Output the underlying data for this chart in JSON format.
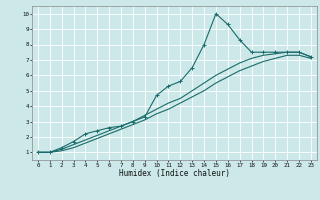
{
  "xlabel": "Humidex (Indice chaleur)",
  "bg_color": "#cce8e8",
  "grid_color": "#ffffff",
  "line_color": "#1a6b6b",
  "xlim": [
    -0.5,
    23.5
  ],
  "ylim": [
    0.5,
    10.5
  ],
  "xticks": [
    0,
    1,
    2,
    3,
    4,
    5,
    6,
    7,
    8,
    9,
    10,
    11,
    12,
    13,
    14,
    15,
    16,
    17,
    18,
    19,
    20,
    21,
    22,
    23
  ],
  "yticks": [
    1,
    2,
    3,
    4,
    5,
    6,
    7,
    8,
    9,
    10
  ],
  "series1_x": [
    0,
    1,
    2,
    3,
    4,
    5,
    6,
    7,
    8,
    9,
    10,
    11,
    12,
    13,
    14,
    15,
    16,
    17,
    18,
    19,
    20,
    21,
    22,
    23
  ],
  "series1_y": [
    1,
    1,
    1.3,
    1.7,
    2.2,
    2.4,
    2.6,
    2.7,
    3.0,
    3.3,
    4.7,
    5.3,
    5.6,
    6.5,
    8.0,
    10.0,
    9.3,
    8.3,
    7.5,
    7.5,
    7.5,
    7.5,
    7.5,
    7.2
  ],
  "series2_x": [
    0,
    1,
    2,
    3,
    4,
    5,
    6,
    7,
    8,
    9,
    10,
    11,
    12,
    13,
    14,
    15,
    16,
    17,
    18,
    19,
    20,
    21,
    22,
    23
  ],
  "series2_y": [
    1,
    1,
    1.2,
    1.5,
    1.8,
    2.1,
    2.4,
    2.7,
    3.0,
    3.4,
    3.8,
    4.2,
    4.5,
    5.0,
    5.5,
    6.0,
    6.4,
    6.8,
    7.1,
    7.3,
    7.4,
    7.5,
    7.5,
    7.2
  ],
  "series3_x": [
    0,
    1,
    2,
    3,
    4,
    5,
    6,
    7,
    8,
    9,
    10,
    11,
    12,
    13,
    14,
    15,
    16,
    17,
    18,
    19,
    20,
    21,
    22,
    23
  ],
  "series3_y": [
    1,
    1,
    1.1,
    1.3,
    1.6,
    1.9,
    2.2,
    2.5,
    2.8,
    3.1,
    3.5,
    3.8,
    4.2,
    4.6,
    5.0,
    5.5,
    5.9,
    6.3,
    6.6,
    6.9,
    7.1,
    7.3,
    7.3,
    7.1
  ]
}
